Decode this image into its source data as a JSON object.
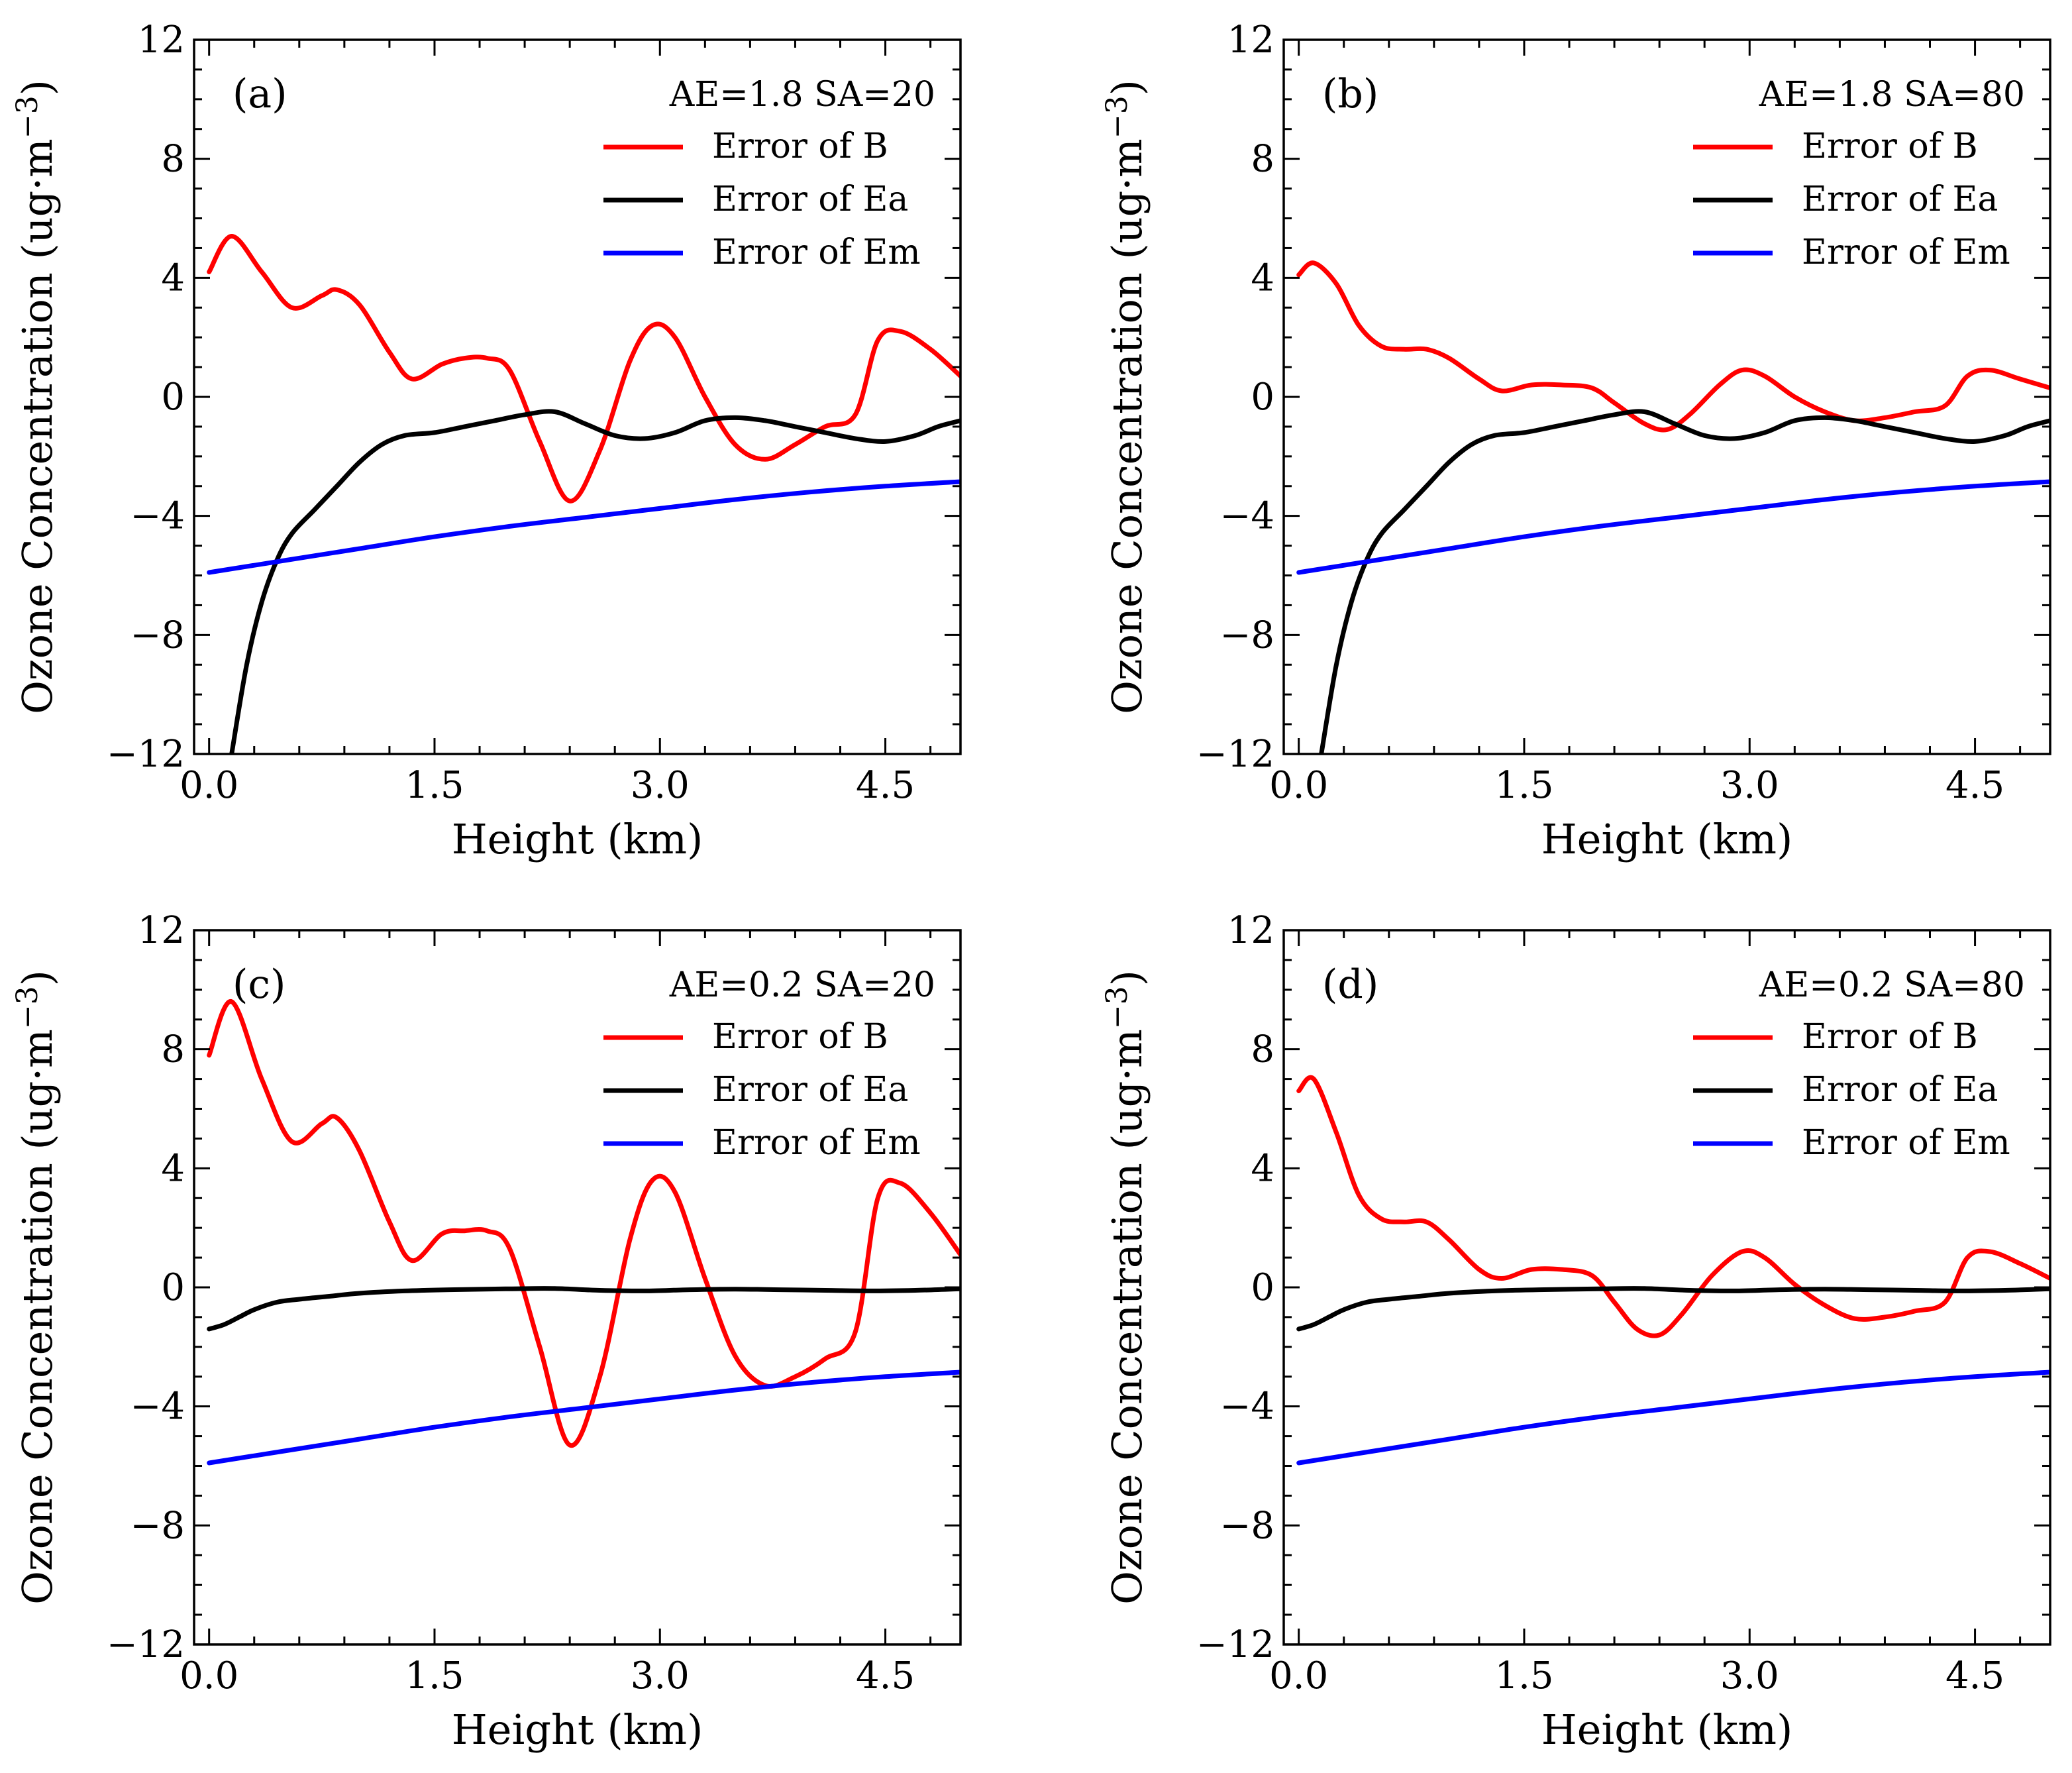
{
  "chart_data": [
    {
      "type": "line",
      "panel_label": "(a)",
      "legend_title": "AE=1.8 SA=20",
      "xlabel": "Height (km)",
      "ylabel": "Ozone Concentration (ug·m",
      "ylabel_sup": "−3",
      "ylabel_close": ")",
      "xlim": [
        -0.1,
        5.0
      ],
      "ylim": [
        -12,
        12
      ],
      "xticks": [
        0.0,
        1.5,
        3.0,
        4.5
      ],
      "xtick_labels": [
        "0.0",
        "1.5",
        "3.0",
        "4.5"
      ],
      "yticks": [
        -12,
        -8,
        -4,
        0,
        4,
        8,
        12
      ],
      "ytick_labels": [
        "−12",
        "−8",
        "−4",
        "0",
        "4",
        "8",
        "12"
      ],
      "series": [
        {
          "name": "Error of B",
          "color": "#ff0000",
          "x": [
            0.0,
            0.15,
            0.35,
            0.55,
            0.75,
            0.85,
            1.0,
            1.2,
            1.35,
            1.55,
            1.7,
            1.85,
            2.0,
            2.2,
            2.4,
            2.6,
            2.8,
            2.95,
            3.1,
            3.3,
            3.5,
            3.7,
            3.9,
            4.1,
            4.3,
            4.45,
            4.6,
            4.8,
            5.0
          ],
          "values": [
            4.2,
            5.4,
            4.2,
            3.0,
            3.4,
            3.6,
            3.1,
            1.5,
            0.6,
            1.1,
            1.3,
            1.3,
            0.9,
            -1.5,
            -3.5,
            -1.8,
            1.2,
            2.4,
            2.0,
            0.0,
            -1.6,
            -2.1,
            -1.6,
            -1.0,
            -0.6,
            1.9,
            2.2,
            1.6,
            0.7
          ]
        },
        {
          "name": "Error of Ea",
          "color": "#000000",
          "x": [
            0.15,
            0.25,
            0.35,
            0.45,
            0.55,
            0.7,
            0.85,
            1.0,
            1.15,
            1.3,
            1.5,
            1.7,
            1.9,
            2.1,
            2.3,
            2.5,
            2.7,
            2.9,
            3.1,
            3.3,
            3.5,
            3.7,
            3.9,
            4.1,
            4.3,
            4.5,
            4.7,
            4.85,
            5.0
          ],
          "values": [
            -12.0,
            -9.0,
            -6.9,
            -5.5,
            -4.6,
            -3.8,
            -3.0,
            -2.2,
            -1.6,
            -1.3,
            -1.2,
            -1.0,
            -0.8,
            -0.6,
            -0.5,
            -0.9,
            -1.3,
            -1.4,
            -1.2,
            -0.8,
            -0.7,
            -0.8,
            -1.0,
            -1.2,
            -1.4,
            -1.5,
            -1.3,
            -1.0,
            -0.8
          ]
        },
        {
          "name": "Error of Em",
          "color": "#0000ff",
          "x": [
            0.0,
            0.5,
            1.0,
            1.5,
            2.0,
            2.5,
            3.0,
            3.5,
            4.0,
            4.5,
            5.0
          ],
          "values": [
            -5.9,
            -5.5,
            -5.1,
            -4.7,
            -4.35,
            -4.05,
            -3.75,
            -3.45,
            -3.2,
            -3.0,
            -2.85
          ]
        }
      ]
    },
    {
      "type": "line",
      "panel_label": "(b)",
      "legend_title": "AE=1.8 SA=80",
      "xlabel": "Height (km)",
      "ylabel": "Ozone Concentration (ug·m",
      "ylabel_sup": "−3",
      "ylabel_close": ")",
      "xlim": [
        -0.1,
        5.0
      ],
      "ylim": [
        -12,
        12
      ],
      "xticks": [
        0.0,
        1.5,
        3.0,
        4.5
      ],
      "xtick_labels": [
        "0.0",
        "1.5",
        "3.0",
        "4.5"
      ],
      "yticks": [
        -12,
        -8,
        -4,
        0,
        4,
        8,
        12
      ],
      "ytick_labels": [
        "−12",
        "−8",
        "−4",
        "0",
        "4",
        "8",
        "12"
      ],
      "series": [
        {
          "name": "Error of B",
          "color": "#ff0000",
          "x": [
            0.0,
            0.1,
            0.25,
            0.4,
            0.55,
            0.7,
            0.85,
            1.0,
            1.2,
            1.35,
            1.55,
            1.75,
            1.95,
            2.1,
            2.3,
            2.45,
            2.6,
            2.8,
            2.95,
            3.1,
            3.3,
            3.5,
            3.7,
            3.9,
            4.1,
            4.3,
            4.45,
            4.6,
            4.8,
            5.0
          ],
          "values": [
            4.1,
            4.5,
            3.8,
            2.4,
            1.7,
            1.6,
            1.6,
            1.3,
            0.6,
            0.2,
            0.4,
            0.4,
            0.3,
            -0.2,
            -0.9,
            -1.1,
            -0.6,
            0.4,
            0.9,
            0.7,
            0.0,
            -0.5,
            -0.8,
            -0.7,
            -0.5,
            -0.3,
            0.7,
            0.9,
            0.6,
            0.3
          ]
        },
        {
          "name": "Error of Ea",
          "color": "#000000",
          "x": [
            0.15,
            0.25,
            0.35,
            0.45,
            0.55,
            0.7,
            0.85,
            1.0,
            1.15,
            1.3,
            1.5,
            1.7,
            1.9,
            2.1,
            2.3,
            2.5,
            2.7,
            2.9,
            3.1,
            3.3,
            3.5,
            3.7,
            3.9,
            4.1,
            4.3,
            4.5,
            4.7,
            4.85,
            5.0
          ],
          "values": [
            -12.0,
            -9.0,
            -6.9,
            -5.5,
            -4.6,
            -3.8,
            -3.0,
            -2.2,
            -1.6,
            -1.3,
            -1.2,
            -1.0,
            -0.8,
            -0.6,
            -0.5,
            -0.9,
            -1.3,
            -1.4,
            -1.2,
            -0.8,
            -0.7,
            -0.8,
            -1.0,
            -1.2,
            -1.4,
            -1.5,
            -1.3,
            -1.0,
            -0.8
          ]
        },
        {
          "name": "Error of Em",
          "color": "#0000ff",
          "x": [
            0.0,
            0.5,
            1.0,
            1.5,
            2.0,
            2.5,
            3.0,
            3.5,
            4.0,
            4.5,
            5.0
          ],
          "values": [
            -5.9,
            -5.5,
            -5.1,
            -4.7,
            -4.35,
            -4.05,
            -3.75,
            -3.45,
            -3.2,
            -3.0,
            -2.85
          ]
        }
      ]
    },
    {
      "type": "line",
      "panel_label": "(c)",
      "legend_title": "AE=0.2 SA=20",
      "xlabel": "Height (km)",
      "ylabel": "Ozone Concentration (ug·m",
      "ylabel_sup": "−3",
      "ylabel_close": ")",
      "xlim": [
        -0.1,
        5.0
      ],
      "ylim": [
        -12,
        12
      ],
      "xticks": [
        0.0,
        1.5,
        3.0,
        4.5
      ],
      "xtick_labels": [
        "0.0",
        "1.5",
        "3.0",
        "4.5"
      ],
      "yticks": [
        -12,
        -8,
        -4,
        0,
        4,
        8,
        12
      ],
      "ytick_labels": [
        "−12",
        "−8",
        "−4",
        "0",
        "4",
        "8",
        "12"
      ],
      "series": [
        {
          "name": "Error of B",
          "color": "#ff0000",
          "x": [
            0.0,
            0.15,
            0.35,
            0.55,
            0.75,
            0.85,
            1.0,
            1.2,
            1.35,
            1.55,
            1.7,
            1.85,
            2.0,
            2.2,
            2.4,
            2.6,
            2.8,
            2.95,
            3.1,
            3.3,
            3.5,
            3.7,
            3.9,
            4.1,
            4.3,
            4.45,
            4.6,
            4.8,
            5.0
          ],
          "values": [
            7.8,
            9.6,
            7.0,
            4.9,
            5.5,
            5.7,
            4.6,
            2.2,
            0.9,
            1.8,
            1.9,
            1.9,
            1.3,
            -2.0,
            -5.3,
            -3.0,
            1.6,
            3.6,
            3.2,
            0.3,
            -2.3,
            -3.3,
            -3.0,
            -2.4,
            -1.5,
            3.0,
            3.5,
            2.5,
            1.1
          ]
        },
        {
          "name": "Error of Ea",
          "color": "#000000",
          "x": [
            0.0,
            0.1,
            0.2,
            0.3,
            0.45,
            0.6,
            0.8,
            1.0,
            1.3,
            1.6,
            2.0,
            2.3,
            2.6,
            2.9,
            3.2,
            3.5,
            3.8,
            4.1,
            4.4,
            4.7,
            5.0
          ],
          "values": [
            -1.4,
            -1.25,
            -1.0,
            -0.75,
            -0.5,
            -0.4,
            -0.3,
            -0.2,
            -0.12,
            -0.08,
            -0.05,
            -0.04,
            -0.1,
            -0.12,
            -0.08,
            -0.06,
            -0.08,
            -0.1,
            -0.12,
            -0.1,
            -0.05
          ]
        },
        {
          "name": "Error of Em",
          "color": "#0000ff",
          "x": [
            0.0,
            0.5,
            1.0,
            1.5,
            2.0,
            2.5,
            3.0,
            3.5,
            4.0,
            4.5,
            5.0
          ],
          "values": [
            -5.9,
            -5.5,
            -5.1,
            -4.7,
            -4.35,
            -4.05,
            -3.75,
            -3.45,
            -3.2,
            -3.0,
            -2.85
          ]
        }
      ]
    },
    {
      "type": "line",
      "panel_label": "(d)",
      "legend_title": "AE=0.2 SA=80",
      "xlabel": "Height (km)",
      "ylabel": "Ozone Concentration (ug·m",
      "ylabel_sup": "−3",
      "ylabel_close": ")",
      "xlim": [
        -0.1,
        5.0
      ],
      "ylim": [
        -12,
        12
      ],
      "xticks": [
        0.0,
        1.5,
        3.0,
        4.5
      ],
      "xtick_labels": [
        "0.0",
        "1.5",
        "3.0",
        "4.5"
      ],
      "yticks": [
        -12,
        -8,
        -4,
        0,
        4,
        8,
        12
      ],
      "ytick_labels": [
        "−12",
        "−8",
        "−4",
        "0",
        "4",
        "8",
        "12"
      ],
      "series": [
        {
          "name": "Error of B",
          "color": "#ff0000",
          "x": [
            0.0,
            0.1,
            0.25,
            0.4,
            0.55,
            0.7,
            0.85,
            1.0,
            1.2,
            1.35,
            1.55,
            1.75,
            1.95,
            2.1,
            2.25,
            2.4,
            2.55,
            2.75,
            2.95,
            3.1,
            3.3,
            3.5,
            3.7,
            3.9,
            4.1,
            4.3,
            4.45,
            4.6,
            4.8,
            5.0
          ],
          "values": [
            6.6,
            7.0,
            5.2,
            3.1,
            2.3,
            2.2,
            2.2,
            1.6,
            0.6,
            0.3,
            0.6,
            0.6,
            0.4,
            -0.5,
            -1.4,
            -1.6,
            -0.9,
            0.4,
            1.2,
            1.0,
            0.1,
            -0.6,
            -1.05,
            -1.0,
            -0.8,
            -0.5,
            1.0,
            1.2,
            0.8,
            0.3
          ]
        },
        {
          "name": "Error of Ea",
          "color": "#000000",
          "x": [
            0.0,
            0.1,
            0.2,
            0.3,
            0.45,
            0.6,
            0.8,
            1.0,
            1.3,
            1.6,
            2.0,
            2.3,
            2.6,
            2.9,
            3.2,
            3.5,
            3.8,
            4.1,
            4.4,
            4.7,
            5.0
          ],
          "values": [
            -1.4,
            -1.25,
            -1.0,
            -0.75,
            -0.5,
            -0.4,
            -0.3,
            -0.2,
            -0.12,
            -0.08,
            -0.05,
            -0.04,
            -0.1,
            -0.12,
            -0.08,
            -0.06,
            -0.08,
            -0.1,
            -0.12,
            -0.1,
            -0.05
          ]
        },
        {
          "name": "Error of Em",
          "color": "#0000ff",
          "x": [
            0.0,
            0.5,
            1.0,
            1.5,
            2.0,
            2.5,
            3.0,
            3.5,
            4.0,
            4.5,
            5.0
          ],
          "values": [
            -5.9,
            -5.5,
            -5.1,
            -4.7,
            -4.35,
            -4.05,
            -3.75,
            -3.45,
            -3.2,
            -3.0,
            -2.85
          ]
        }
      ]
    }
  ]
}
